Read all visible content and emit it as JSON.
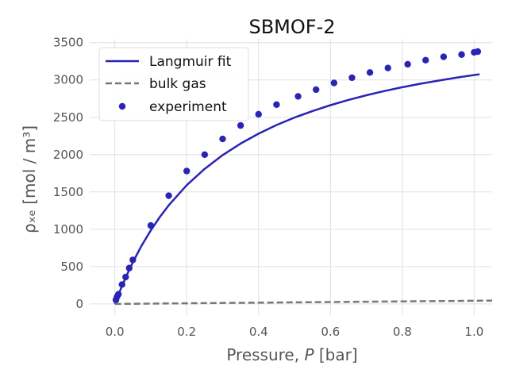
{
  "chart_data": {
    "type": "line",
    "title": "SBMOF-2",
    "xlabel_text": "Pressure, ",
    "xlabel_var": "P",
    "xlabel_unit": " [bar]",
    "ylabel": "ρₓₑ [mol / m³]",
    "xlim": [
      -0.07,
      1.05
    ],
    "ylim": [
      -150,
      3550
    ],
    "xticks": [
      0.0,
      0.2,
      0.4,
      0.6,
      0.8,
      1.0
    ],
    "xtick_labels": [
      "0.0",
      "0.2",
      "0.4",
      "0.6",
      "0.8",
      "1.0"
    ],
    "yticks": [
      0,
      500,
      1000,
      1500,
      2000,
      2500,
      3000,
      3500
    ],
    "ytick_labels": [
      "0",
      "500",
      "1000",
      "1500",
      "2000",
      "2500",
      "3000",
      "3500"
    ],
    "grid": true,
    "legend_position": "top-left",
    "series": [
      {
        "name": "Langmuir fit",
        "kind": "line",
        "color": "#2a24b4",
        "style": "solid",
        "x": [
          0.0,
          0.01,
          0.02,
          0.03,
          0.04,
          0.05,
          0.075,
          0.1,
          0.125,
          0.15,
          0.2,
          0.25,
          0.3,
          0.35,
          0.4,
          0.45,
          0.5,
          0.55,
          0.6,
          0.65,
          0.7,
          0.75,
          0.8,
          0.85,
          0.9,
          0.95,
          1.0,
          1.015
        ],
        "y": [
          0,
          124,
          240,
          351,
          457,
          557,
          785,
          985,
          1163,
          1321,
          1590,
          1810,
          1993,
          2148,
          2281,
          2396,
          2496,
          2584,
          2662,
          2732,
          2795,
          2851,
          2902,
          2949,
          2991,
          3030,
          3066,
          3076
        ]
      },
      {
        "name": "bulk gas",
        "kind": "line",
        "color": "#777777",
        "style": "dashed",
        "x": [
          0.0,
          1.05
        ],
        "y": [
          0,
          45
        ]
      },
      {
        "name": "experiment",
        "kind": "scatter",
        "color": "#2a24b4",
        "x": [
          0.003,
          0.006,
          0.01,
          0.02,
          0.03,
          0.04,
          0.05,
          0.1,
          0.15,
          0.2,
          0.25,
          0.3,
          0.35,
          0.4,
          0.45,
          0.51,
          0.56,
          0.61,
          0.66,
          0.71,
          0.76,
          0.815,
          0.865,
          0.915,
          0.965,
          1.0,
          1.01
        ],
        "y": [
          55,
          95,
          130,
          260,
          360,
          480,
          590,
          1050,
          1450,
          1780,
          2000,
          2210,
          2390,
          2540,
          2670,
          2780,
          2870,
          2960,
          3030,
          3100,
          3160,
          3210,
          3265,
          3310,
          3340,
          3370,
          3380
        ]
      }
    ]
  }
}
